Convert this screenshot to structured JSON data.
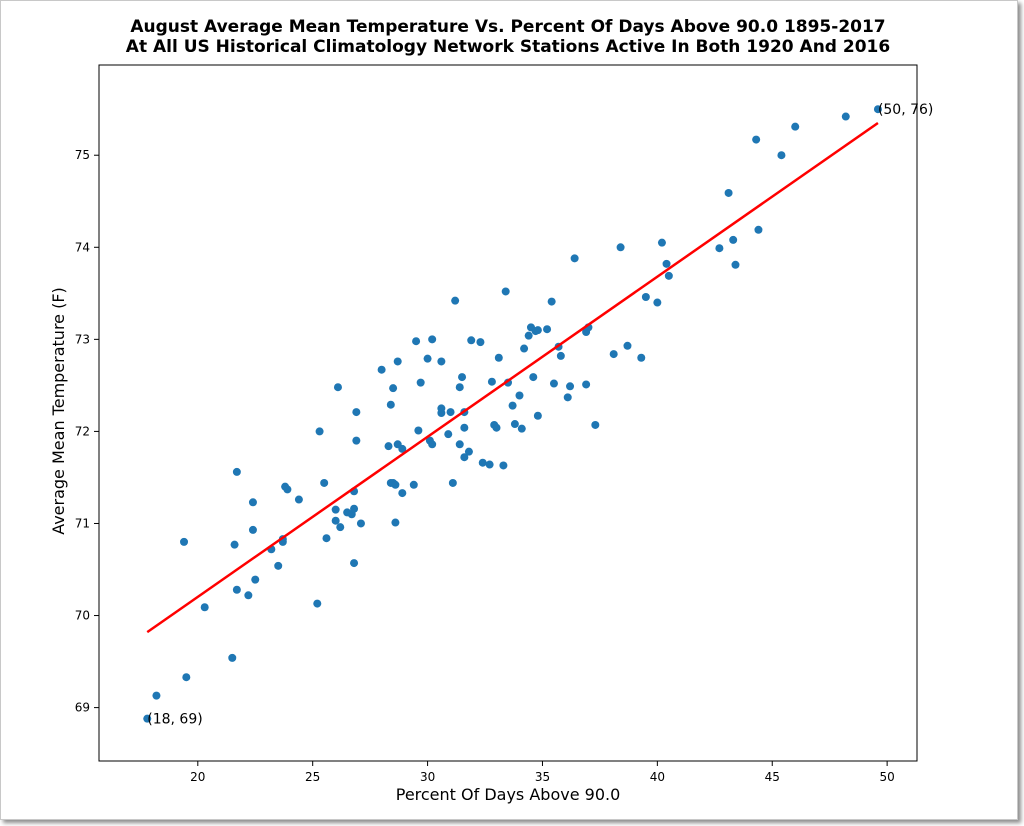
{
  "chart_data": {
    "type": "scatter",
    "title": "August Average Mean Temperature Vs. Percent Of Days Above 90.0 1895-2017",
    "subtitle": "At All US Historical Climatology Network Stations Active In Both 1920 And 2016",
    "xlabel": "Percent Of Days Above 90.0",
    "ylabel": "Average Mean Temperature (F)",
    "xlim": [
      15.7,
      51.3
    ],
    "ylim": [
      68.42,
      75.98
    ],
    "xticks": [
      20,
      25,
      30,
      35,
      40,
      45,
      50
    ],
    "yticks": [
      69,
      70,
      71,
      72,
      73,
      74,
      75
    ],
    "grid": false,
    "point_color": "#1f77b4",
    "line_color": "#ff0000",
    "trendline": {
      "x": [
        17.8,
        49.6
      ],
      "y": [
        69.82,
        75.35
      ]
    },
    "annotations": [
      {
        "text": "(18, 69)",
        "x": 17.8,
        "y": 68.88
      },
      {
        "text": "(50, 76)",
        "x": 49.6,
        "y": 75.5
      }
    ],
    "points": [
      [
        17.8,
        68.88
      ],
      [
        18.2,
        69.13
      ],
      [
        19.5,
        69.33
      ],
      [
        19.4,
        70.8
      ],
      [
        20.3,
        70.09
      ],
      [
        21.5,
        69.54
      ],
      [
        21.6,
        70.77
      ],
      [
        21.7,
        70.28
      ],
      [
        21.7,
        71.56
      ],
      [
        22.2,
        70.22
      ],
      [
        22.4,
        71.23
      ],
      [
        22.4,
        70.93
      ],
      [
        22.5,
        70.39
      ],
      [
        23.2,
        70.72
      ],
      [
        23.5,
        70.54
      ],
      [
        23.7,
        70.8
      ],
      [
        23.7,
        70.83
      ],
      [
        23.8,
        71.4
      ],
      [
        23.9,
        71.37
      ],
      [
        24.4,
        71.26
      ],
      [
        25.2,
        70.13
      ],
      [
        25.3,
        72.0
      ],
      [
        25.5,
        71.44
      ],
      [
        25.6,
        70.84
      ],
      [
        26.0,
        71.15
      ],
      [
        26.0,
        71.03
      ],
      [
        26.1,
        72.48
      ],
      [
        26.2,
        70.96
      ],
      [
        26.5,
        71.12
      ],
      [
        26.7,
        71.1
      ],
      [
        26.8,
        71.16
      ],
      [
        26.8,
        70.57
      ],
      [
        26.8,
        71.35
      ],
      [
        26.9,
        72.21
      ],
      [
        26.9,
        71.9
      ],
      [
        27.1,
        71.0
      ],
      [
        28.0,
        72.67
      ],
      [
        28.3,
        71.84
      ],
      [
        28.4,
        71.44
      ],
      [
        28.4,
        72.29
      ],
      [
        28.5,
        72.47
      ],
      [
        28.5,
        71.44
      ],
      [
        28.6,
        71.42
      ],
      [
        28.6,
        71.01
      ],
      [
        28.7,
        71.86
      ],
      [
        28.7,
        72.76
      ],
      [
        28.9,
        71.33
      ],
      [
        28.9,
        71.81
      ],
      [
        29.4,
        71.42
      ],
      [
        29.5,
        72.98
      ],
      [
        29.6,
        72.01
      ],
      [
        29.7,
        72.53
      ],
      [
        30.0,
        72.79
      ],
      [
        30.1,
        71.9
      ],
      [
        30.2,
        71.86
      ],
      [
        30.2,
        73.0
      ],
      [
        30.6,
        72.25
      ],
      [
        30.6,
        72.2
      ],
      [
        30.6,
        72.76
      ],
      [
        30.9,
        71.97
      ],
      [
        31.0,
        72.21
      ],
      [
        31.1,
        71.44
      ],
      [
        31.2,
        73.42
      ],
      [
        31.4,
        72.48
      ],
      [
        31.4,
        71.86
      ],
      [
        31.5,
        72.59
      ],
      [
        31.6,
        72.21
      ],
      [
        31.6,
        72.04
      ],
      [
        31.6,
        71.72
      ],
      [
        31.8,
        71.78
      ],
      [
        31.9,
        72.99
      ],
      [
        32.3,
        72.97
      ],
      [
        32.4,
        71.66
      ],
      [
        32.7,
        71.64
      ],
      [
        32.8,
        72.54
      ],
      [
        32.9,
        72.07
      ],
      [
        33.0,
        72.04
      ],
      [
        33.1,
        72.8
      ],
      [
        33.3,
        71.63
      ],
      [
        33.4,
        73.52
      ],
      [
        33.5,
        72.53
      ],
      [
        33.7,
        72.28
      ],
      [
        33.8,
        72.08
      ],
      [
        34.0,
        72.39
      ],
      [
        34.1,
        72.03
      ],
      [
        34.2,
        72.9
      ],
      [
        34.4,
        73.04
      ],
      [
        34.5,
        73.13
      ],
      [
        34.6,
        72.59
      ],
      [
        34.7,
        73.09
      ],
      [
        34.8,
        72.17
      ],
      [
        34.8,
        73.1
      ],
      [
        35.2,
        73.11
      ],
      [
        35.4,
        73.41
      ],
      [
        35.5,
        72.52
      ],
      [
        35.7,
        72.92
      ],
      [
        35.8,
        72.82
      ],
      [
        36.1,
        72.37
      ],
      [
        36.2,
        72.49
      ],
      [
        36.4,
        73.88
      ],
      [
        36.9,
        72.51
      ],
      [
        36.9,
        73.08
      ],
      [
        37.0,
        73.13
      ],
      [
        37.3,
        72.07
      ],
      [
        38.1,
        72.84
      ],
      [
        38.4,
        74.0
      ],
      [
        38.7,
        72.93
      ],
      [
        39.3,
        72.8
      ],
      [
        39.5,
        73.46
      ],
      [
        40.0,
        73.4
      ],
      [
        40.2,
        74.05
      ],
      [
        40.4,
        73.82
      ],
      [
        40.5,
        73.69
      ],
      [
        42.7,
        73.99
      ],
      [
        43.1,
        74.59
      ],
      [
        43.3,
        74.08
      ],
      [
        43.4,
        73.81
      ],
      [
        44.3,
        75.17
      ],
      [
        44.4,
        74.19
      ],
      [
        45.4,
        75.0
      ],
      [
        46.0,
        75.31
      ],
      [
        48.2,
        75.42
      ],
      [
        49.6,
        75.5
      ]
    ]
  }
}
